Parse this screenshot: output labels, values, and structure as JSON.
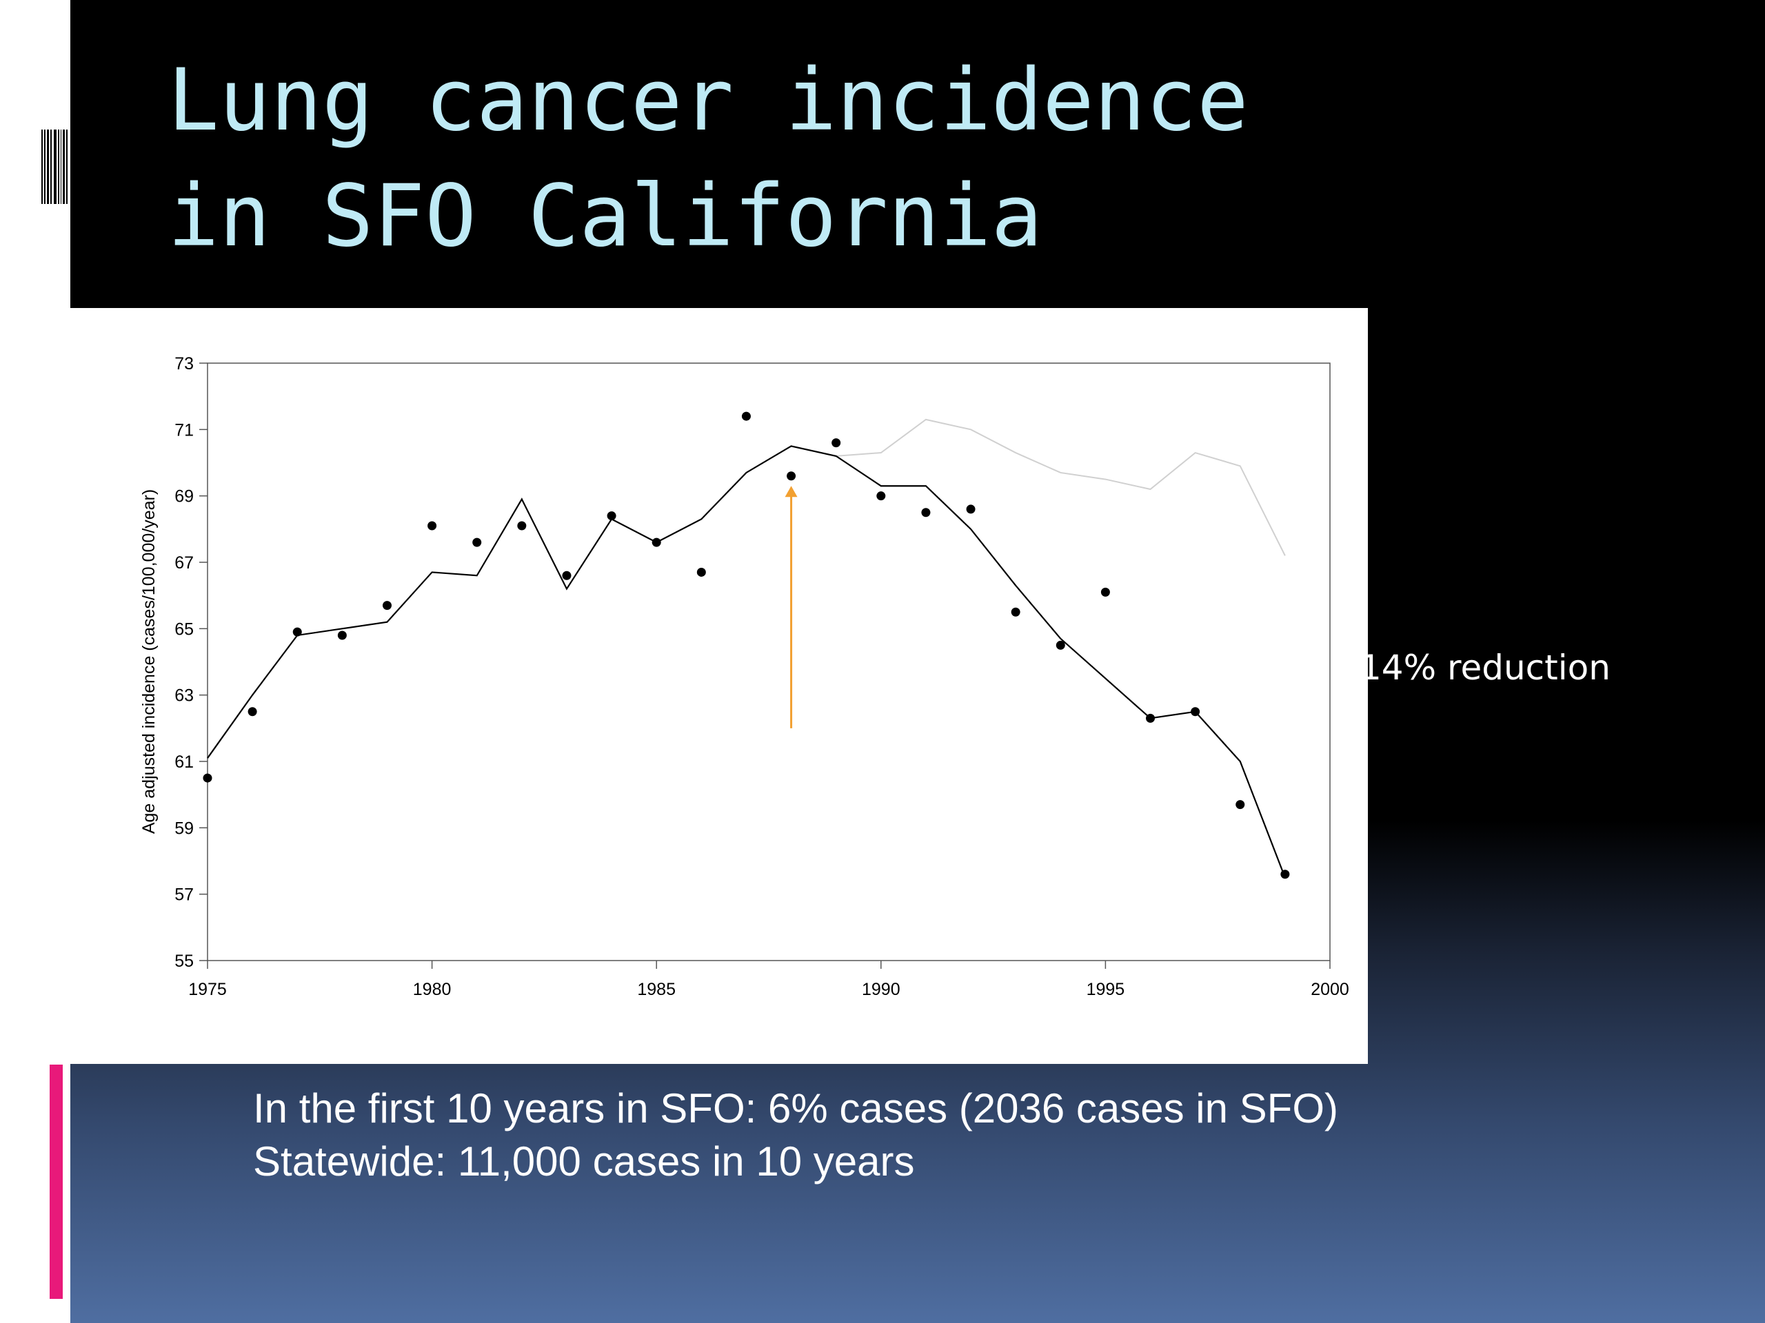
{
  "slide": {
    "title": "Lung cancer incidence\nin SFO California",
    "annotation": "14% reduction",
    "caption_lines": [
      "In the first 10 years in SFO: 6% cases (2036 cases in SFO)",
      "Statewide: 11,000 cases in 10 years"
    ],
    "colors": {
      "title": "#bfeaf5",
      "accent_bar": "#e8197a",
      "arrow": "#f2a031",
      "fitted_line": "#000000",
      "comparison_line": "#d0d0d0"
    }
  },
  "chart_data": {
    "type": "scatter",
    "title": "",
    "xlabel": "",
    "ylabel": "Age adjusted incidence (cases/100,000/year)",
    "xlim": [
      1975,
      2000
    ],
    "ylim": [
      55,
      73
    ],
    "xticks": [
      1975,
      1980,
      1985,
      1990,
      1995,
      2000
    ],
    "yticks": [
      55,
      57,
      59,
      61,
      63,
      65,
      67,
      69,
      71,
      73
    ],
    "grid": false,
    "legend": "none",
    "series": [
      {
        "kind": "points",
        "x": [
          1975,
          1976,
          1977,
          1978,
          1979,
          1980,
          1981,
          1982,
          1983,
          1984,
          1985,
          1986,
          1987,
          1988,
          1989,
          1990,
          1991,
          1992,
          1993,
          1994,
          1995,
          1996,
          1997,
          1998,
          1999
        ],
        "y": [
          60.5,
          62.5,
          64.9,
          64.8,
          65.7,
          68.1,
          67.6,
          68.1,
          66.6,
          68.4,
          67.6,
          66.7,
          71.4,
          69.6,
          70.6,
          69.0,
          68.5,
          68.6,
          65.5,
          64.5,
          66.1,
          62.3,
          62.5,
          59.7,
          57.6
        ]
      },
      {
        "kind": "line",
        "x": [
          1975,
          1976,
          1977,
          1978,
          1979,
          1980,
          1981,
          1982,
          1983,
          1984,
          1985,
          1986,
          1987,
          1988,
          1989,
          1990,
          1991,
          1992,
          1993,
          1994,
          1995,
          1996,
          1997,
          1998,
          1999
        ],
        "y": [
          61.1,
          63.0,
          64.8,
          65.0,
          65.2,
          66.7,
          66.6,
          68.9,
          66.2,
          68.3,
          67.6,
          68.3,
          69.7,
          70.5,
          70.2,
          69.3,
          69.3,
          68.0,
          66.3,
          64.7,
          63.5,
          62.3,
          62.5,
          61.0,
          57.5
        ]
      },
      {
        "kind": "line",
        "x": [
          1989,
          1990,
          1991,
          1992,
          1993,
          1994,
          1995,
          1996,
          1997,
          1998,
          1999
        ],
        "y": [
          70.2,
          70.3,
          71.3,
          71.0,
          70.3,
          69.7,
          69.5,
          69.2,
          70.3,
          69.9,
          67.2
        ]
      }
    ],
    "annotations": [
      {
        "type": "arrow",
        "x": 1988,
        "y_from": 62.0,
        "y_to": 69.3
      }
    ]
  }
}
